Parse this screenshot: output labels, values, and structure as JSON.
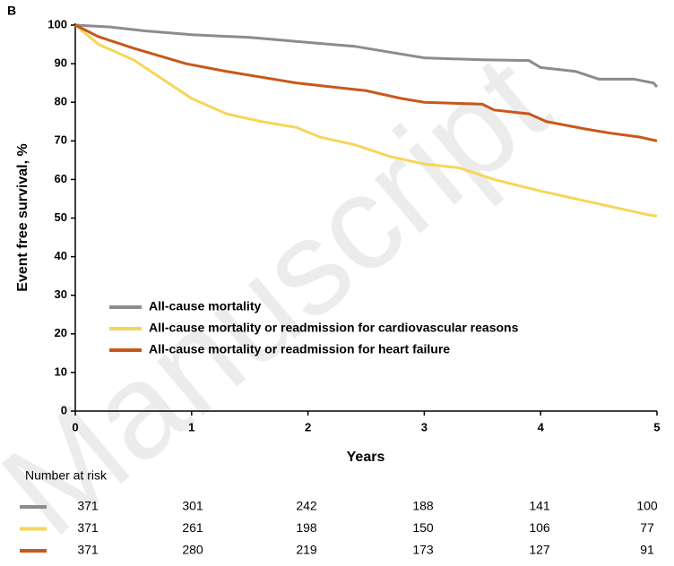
{
  "chart_data": {
    "type": "line",
    "panel_label": "B",
    "watermark": "Manuscript",
    "xlabel": "Years",
    "ylabel": "Event free survival, %",
    "xlim": [
      0,
      5
    ],
    "xticks": [
      0,
      1,
      2,
      3,
      4,
      5
    ],
    "ylim": [
      0,
      100
    ],
    "yticks": [
      0,
      10,
      20,
      30,
      40,
      50,
      60,
      70,
      80,
      90,
      100
    ],
    "legend": "lower left",
    "series": [
      {
        "name": "All-cause mortality",
        "color": "#8c8c8c",
        "x": [
          0,
          0.3,
          0.6,
          1,
          1.5,
          2,
          2.4,
          2.7,
          3,
          3.5,
          3.9,
          4.0,
          4.3,
          4.5,
          4.8,
          4.97,
          5
        ],
        "values": [
          100,
          99.5,
          98.5,
          97.5,
          96.8,
          95.5,
          94.5,
          93,
          91.5,
          91,
          90.8,
          89,
          88,
          86,
          86,
          85,
          84
        ]
      },
      {
        "name": "All-cause mortality or readmission for cardiovascular reasons",
        "color": "#f5d65a",
        "x": [
          0,
          0.2,
          0.5,
          0.75,
          1.0,
          1.3,
          1.6,
          1.9,
          2.1,
          2.4,
          2.7,
          3.0,
          3.3,
          3.6,
          4.0,
          4.3,
          4.6,
          4.9,
          5
        ],
        "values": [
          100,
          95,
          91,
          86,
          81,
          77,
          75,
          73.5,
          71,
          69,
          66,
          64,
          63,
          60,
          57,
          55,
          53,
          51,
          50.5
        ]
      },
      {
        "name": "All-cause mortality or readmission for heart failure",
        "color": "#c8581a",
        "x": [
          0,
          0.2,
          0.5,
          0.95,
          1.3,
          1.6,
          1.9,
          2.2,
          2.5,
          2.8,
          3.0,
          3.5,
          3.6,
          3.9,
          4.05,
          4.4,
          4.6,
          4.85,
          5
        ],
        "values": [
          100,
          97,
          94,
          90,
          88,
          86.5,
          85,
          84,
          83,
          81,
          80,
          79.5,
          78,
          77,
          75,
          73,
          72,
          71,
          70
        ]
      }
    ],
    "number_at_risk": {
      "title": "Number at risk",
      "rows": [
        [
          371,
          301,
          242,
          188,
          141,
          100
        ],
        [
          371,
          261,
          198,
          150,
          106,
          77
        ],
        [
          371,
          280,
          219,
          173,
          127,
          91
        ]
      ]
    }
  }
}
